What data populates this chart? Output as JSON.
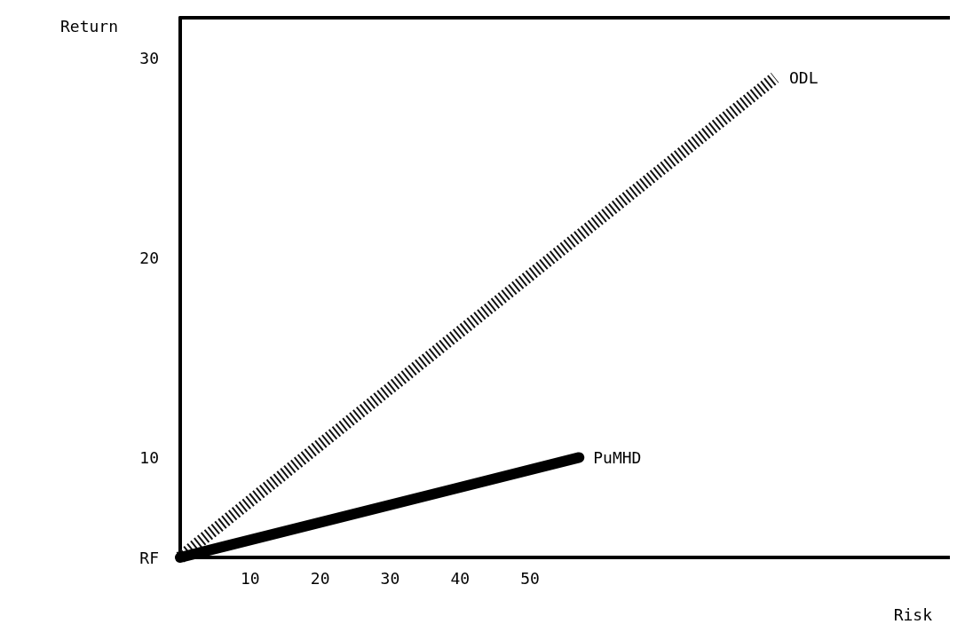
{
  "chart_data": {
    "type": "line",
    "xlabel": "Risk",
    "ylabel": "Return",
    "xlim": [
      0,
      110
    ],
    "xticks": [
      10,
      20,
      30,
      40,
      50
    ],
    "ylim": [
      5,
      32
    ],
    "yticks": [
      {
        "value": 5,
        "label": "RF"
      },
      10,
      20,
      30
    ],
    "grid": false,
    "legend": false,
    "marker": "none",
    "series": [
      {
        "name": "ODL",
        "color": "#111111",
        "line_style": "dotted",
        "x": [
          0,
          85
        ],
        "values": [
          5,
          29
        ]
      },
      {
        "name": "PuMHD",
        "color": "#000000",
        "line_style": "solid",
        "x": [
          0,
          57
        ],
        "values": [
          5,
          10
        ]
      }
    ]
  }
}
